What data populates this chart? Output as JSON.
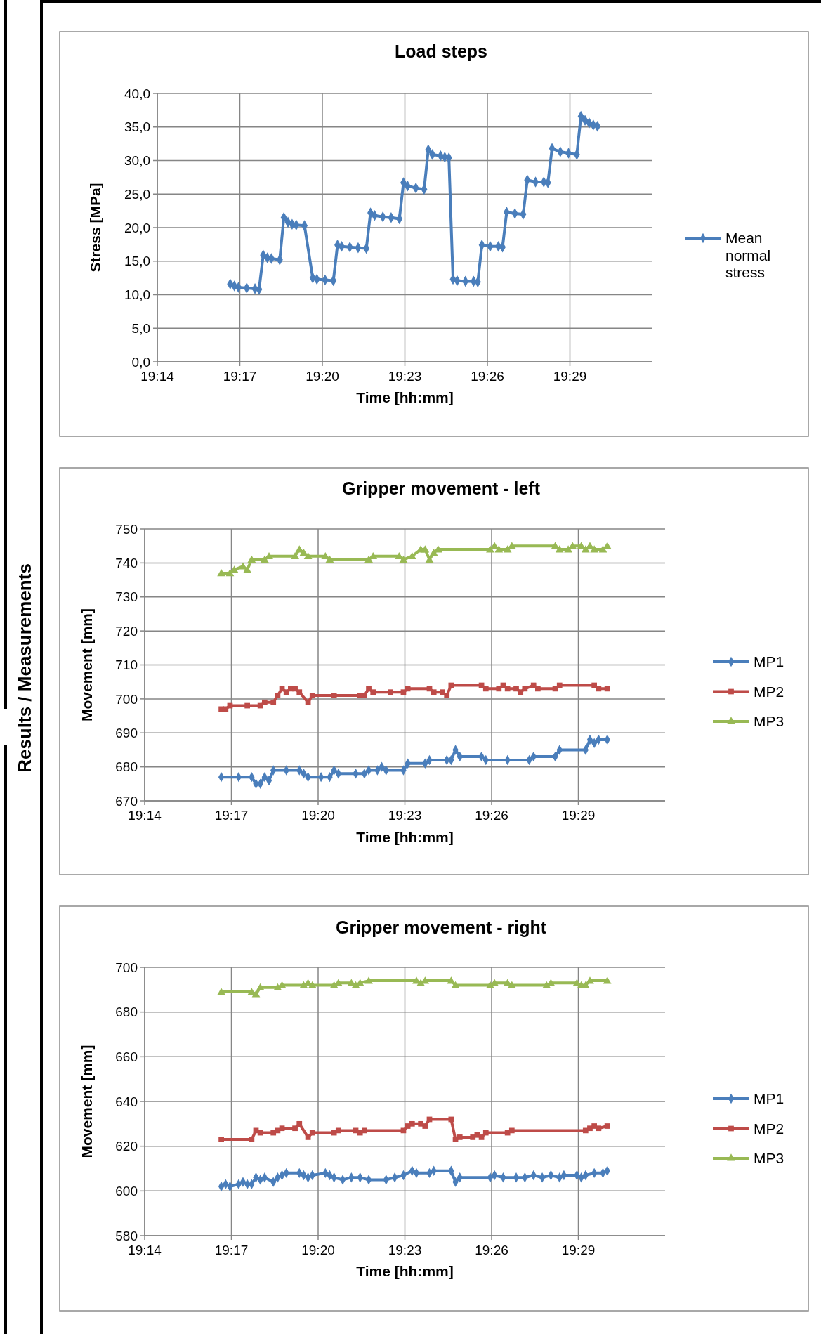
{
  "chart_data": [
    {
      "type": "line",
      "title": "Load steps",
      "xlabel": "Time [hh:mm]",
      "ylabel": "Stress [MPa]",
      "xlim": [
        19.23333,
        19.53333
      ],
      "xticks": [
        {
          "value": 19.23333,
          "label": "19:14"
        },
        {
          "value": 19.28333,
          "label": "19:17"
        },
        {
          "value": 19.33333,
          "label": "19:20"
        },
        {
          "value": 19.38333,
          "label": "19:23"
        },
        {
          "value": 19.43333,
          "label": "19:26"
        },
        {
          "value": 19.48333,
          "label": "19:29"
        }
      ],
      "ylim": [
        0,
        40
      ],
      "yticks": [
        {
          "value": 0,
          "label": "0,0"
        },
        {
          "value": 5,
          "label": "5,0"
        },
        {
          "value": 10,
          "label": "10,0"
        },
        {
          "value": 15,
          "label": "15,0"
        },
        {
          "value": 20,
          "label": "20,0"
        },
        {
          "value": 25,
          "label": "25,0"
        },
        {
          "value": 30,
          "label": "30,0"
        },
        {
          "value": 35,
          "label": "35,0"
        },
        {
          "value": 40,
          "label": "40,0"
        }
      ],
      "grid": true,
      "legend": "right",
      "series": [
        {
          "name": "Mean normal stress",
          "color": "#4a7ebb",
          "marker": "diamond",
          "x": [
            19.2775,
            19.28,
            19.2825,
            19.2875,
            19.2925,
            19.295,
            19.2975,
            19.3,
            19.3025,
            19.3075,
            19.31,
            19.3125,
            19.315,
            19.3175,
            19.3225,
            19.3275,
            19.33,
            19.335,
            19.34,
            19.3425,
            19.345,
            19.35,
            19.355,
            19.36,
            19.3625,
            19.365,
            19.37,
            19.375,
            19.38,
            19.3825,
            19.385,
            19.39,
            19.395,
            19.3975,
            19.4,
            19.405,
            19.4075,
            19.41,
            19.4125,
            19.415,
            19.42,
            19.425,
            19.4275,
            19.43,
            19.435,
            19.44,
            19.4425,
            19.445,
            19.45,
            19.455,
            19.4575,
            19.4625,
            19.4675,
            19.47,
            19.4725,
            19.4775,
            19.4825,
            19.4875,
            19.49,
            19.4925,
            19.495,
            19.4975,
            19.5
          ],
          "values": [
            11.6,
            11.3,
            11.1,
            11.0,
            10.9,
            10.8,
            15.9,
            15.5,
            15.4,
            15.2,
            21.5,
            20.8,
            20.5,
            20.4,
            20.3,
            12.5,
            12.3,
            12.2,
            12.1,
            17.4,
            17.2,
            17.1,
            17.0,
            16.9,
            22.2,
            21.8,
            21.6,
            21.5,
            21.3,
            26.7,
            26.2,
            25.9,
            25.7,
            31.6,
            30.9,
            30.7,
            30.5,
            30.4,
            12.3,
            12.1,
            12.0,
            12.0,
            11.9,
            17.4,
            17.2,
            17.2,
            17.1,
            22.3,
            22.1,
            22.0,
            27.1,
            26.8,
            26.8,
            26.7,
            31.8,
            31.3,
            31.1,
            30.9,
            36.6,
            36.0,
            35.6,
            35.3,
            35.1
          ]
        }
      ]
    },
    {
      "type": "line",
      "title": "Gripper movement - left",
      "xlabel": "Time [hh:mm]",
      "ylabel": "Movement [mm]",
      "annotations": [
        "Results / Measurements"
      ],
      "xlim": [
        19.23333,
        19.53333
      ],
      "xticks": [
        {
          "value": 19.23333,
          "label": "19:14"
        },
        {
          "value": 19.28333,
          "label": "19:17"
        },
        {
          "value": 19.33333,
          "label": "19:20"
        },
        {
          "value": 19.38333,
          "label": "19:23"
        },
        {
          "value": 19.43333,
          "label": "19:26"
        },
        {
          "value": 19.48333,
          "label": "19:29"
        }
      ],
      "ylim": [
        670,
        750
      ],
      "yticks": [
        670,
        680,
        690,
        700,
        710,
        720,
        730,
        740,
        750
      ],
      "grid": true,
      "legend": "right",
      "series": [
        {
          "name": "MP1",
          "color": "#4a7ebb",
          "marker": "diamond",
          "x": [
            19.2775,
            19.2875,
            19.295,
            19.2975,
            19.3,
            19.3025,
            19.305,
            19.3075,
            19.315,
            19.3225,
            19.325,
            19.3275,
            19.335,
            19.34,
            19.3425,
            19.345,
            19.355,
            19.36,
            19.3625,
            19.3675,
            19.37,
            19.3725,
            19.3825,
            19.385,
            19.395,
            19.3975,
            19.4075,
            19.41,
            19.4125,
            19.415,
            19.4275,
            19.43,
            19.4425,
            19.455,
            19.4575,
            19.47,
            19.4725,
            19.4875,
            19.49,
            19.4925,
            19.495,
            19.5
          ],
          "values": [
            677,
            677,
            677,
            675,
            675,
            677,
            676,
            679,
            679,
            679,
            678,
            677,
            677,
            677,
            679,
            678,
            678,
            678,
            679,
            679,
            680,
            679,
            679,
            681,
            681,
            682,
            682,
            682,
            685,
            683,
            683,
            682,
            682,
            682,
            683,
            683,
            685,
            685,
            688,
            687,
            688,
            688
          ]
        },
        {
          "name": "MP2",
          "color": "#be4b48",
          "marker": "square",
          "x": [
            19.2775,
            19.28,
            19.2825,
            19.2925,
            19.3,
            19.3025,
            19.3075,
            19.31,
            19.3125,
            19.315,
            19.3175,
            19.32,
            19.3225,
            19.3275,
            19.33,
            19.3425,
            19.3575,
            19.36,
            19.3625,
            19.365,
            19.375,
            19.3825,
            19.385,
            19.3975,
            19.4,
            19.405,
            19.4075,
            19.41,
            19.4275,
            19.43,
            19.4375,
            19.44,
            19.4425,
            19.4475,
            19.45,
            19.4525,
            19.4575,
            19.46,
            19.47,
            19.4725,
            19.4925,
            19.495,
            19.5
          ],
          "values": [
            697,
            697,
            698,
            698,
            698,
            699,
            699,
            701,
            703,
            702,
            703,
            703,
            702,
            699,
            701,
            701,
            701,
            701,
            703,
            702,
            702,
            702,
            703,
            703,
            702,
            702,
            701,
            704,
            704,
            703,
            703,
            704,
            703,
            703,
            702,
            703,
            704,
            703,
            703,
            704,
            704,
            703,
            703
          ]
        },
        {
          "name": "MP3",
          "color": "#98b954",
          "marker": "triangle",
          "x": [
            19.2775,
            19.2825,
            19.285,
            19.29,
            19.2925,
            19.295,
            19.3025,
            19.305,
            19.32,
            19.3225,
            19.325,
            19.3275,
            19.3375,
            19.34,
            19.3625,
            19.365,
            19.38,
            19.3825,
            19.3875,
            19.3925,
            19.395,
            19.3975,
            19.4,
            19.4025,
            19.4325,
            19.435,
            19.4375,
            19.4425,
            19.445,
            19.47,
            19.4725,
            19.4775,
            19.48,
            19.485,
            19.4875,
            19.49,
            19.4925,
            19.4975,
            19.5
          ],
          "values": [
            737,
            737,
            738,
            739,
            738,
            741,
            741,
            742,
            742,
            744,
            743,
            742,
            742,
            741,
            741,
            742,
            742,
            741,
            742,
            744,
            744,
            741,
            743,
            744,
            744,
            745,
            744,
            744,
            745,
            745,
            744,
            744,
            745,
            745,
            744,
            745,
            744,
            744,
            745
          ]
        }
      ]
    },
    {
      "type": "line",
      "title": "Gripper movement - right",
      "xlabel": "Time [hh:mm]",
      "ylabel": "Movement [mm]",
      "xlim": [
        19.23333,
        19.53333
      ],
      "xticks": [
        {
          "value": 19.23333,
          "label": "19:14"
        },
        {
          "value": 19.28333,
          "label": "19:17"
        },
        {
          "value": 19.33333,
          "label": "19:20"
        },
        {
          "value": 19.38333,
          "label": "19:23"
        },
        {
          "value": 19.43333,
          "label": "19:26"
        },
        {
          "value": 19.48333,
          "label": "19:29"
        }
      ],
      "ylim": [
        580,
        700
      ],
      "yticks": [
        580,
        600,
        620,
        640,
        660,
        680,
        700
      ],
      "grid": true,
      "legend": "right",
      "series": [
        {
          "name": "MP1",
          "color": "#4a7ebb",
          "marker": "diamond",
          "x": [
            19.2775,
            19.28,
            19.2825,
            19.2875,
            19.29,
            19.2925,
            19.295,
            19.2975,
            19.3,
            19.3025,
            19.3075,
            19.31,
            19.3125,
            19.315,
            19.3225,
            19.325,
            19.3275,
            19.33,
            19.3375,
            19.34,
            19.3425,
            19.3475,
            19.3525,
            19.3575,
            19.3625,
            19.3725,
            19.3775,
            19.3825,
            19.3875,
            19.39,
            19.3975,
            19.4,
            19.41,
            19.4125,
            19.415,
            19.4325,
            19.435,
            19.44,
            19.4475,
            19.4525,
            19.4575,
            19.4625,
            19.4675,
            19.4725,
            19.475,
            19.4825,
            19.485,
            19.4875,
            19.4925,
            19.4975,
            19.5
          ],
          "values": [
            602,
            603,
            602,
            603,
            604,
            603,
            603,
            606,
            605,
            606,
            604,
            606,
            607,
            608,
            608,
            607,
            606,
            607,
            608,
            607,
            606,
            605,
            606,
            606,
            605,
            605,
            606,
            607,
            609,
            608,
            608,
            609,
            609,
            604,
            606,
            606,
            607,
            606,
            606,
            606,
            607,
            606,
            607,
            606,
            607,
            607,
            606,
            607,
            608,
            608,
            609
          ]
        },
        {
          "name": "MP2",
          "color": "#be4b48",
          "marker": "square",
          "x": [
            19.2775,
            19.295,
            19.2975,
            19.3,
            19.3075,
            19.31,
            19.3125,
            19.32,
            19.3225,
            19.3275,
            19.33,
            19.3425,
            19.345,
            19.355,
            19.3575,
            19.36,
            19.3825,
            19.385,
            19.3875,
            19.3925,
            19.395,
            19.3975,
            19.41,
            19.4125,
            19.415,
            19.4225,
            19.425,
            19.4275,
            19.43,
            19.4425,
            19.445,
            19.4875,
            19.49,
            19.4925,
            19.495,
            19.5
          ],
          "values": [
            623,
            623,
            627,
            626,
            626,
            627,
            628,
            628,
            630,
            624,
            626,
            626,
            627,
            627,
            626,
            627,
            627,
            629,
            630,
            630,
            629,
            632,
            632,
            623,
            624,
            624,
            625,
            624,
            626,
            626,
            627,
            627,
            628,
            629,
            628,
            629
          ]
        },
        {
          "name": "MP3",
          "color": "#98b954",
          "marker": "triangle",
          "x": [
            19.2775,
            19.295,
            19.2975,
            19.3,
            19.31,
            19.3125,
            19.325,
            19.3275,
            19.33,
            19.3425,
            19.345,
            19.3525,
            19.355,
            19.3575,
            19.3625,
            19.39,
            19.3925,
            19.395,
            19.41,
            19.4125,
            19.4325,
            19.435,
            19.4425,
            19.445,
            19.465,
            19.4675,
            19.4825,
            19.485,
            19.4875,
            19.49,
            19.5
          ],
          "values": [
            689,
            689,
            688,
            691,
            691,
            692,
            692,
            693,
            692,
            692,
            693,
            693,
            692,
            693,
            694,
            694,
            693,
            694,
            694,
            692,
            692,
            693,
            693,
            692,
            692,
            693,
            693,
            692,
            692,
            694,
            694
          ]
        }
      ]
    }
  ]
}
